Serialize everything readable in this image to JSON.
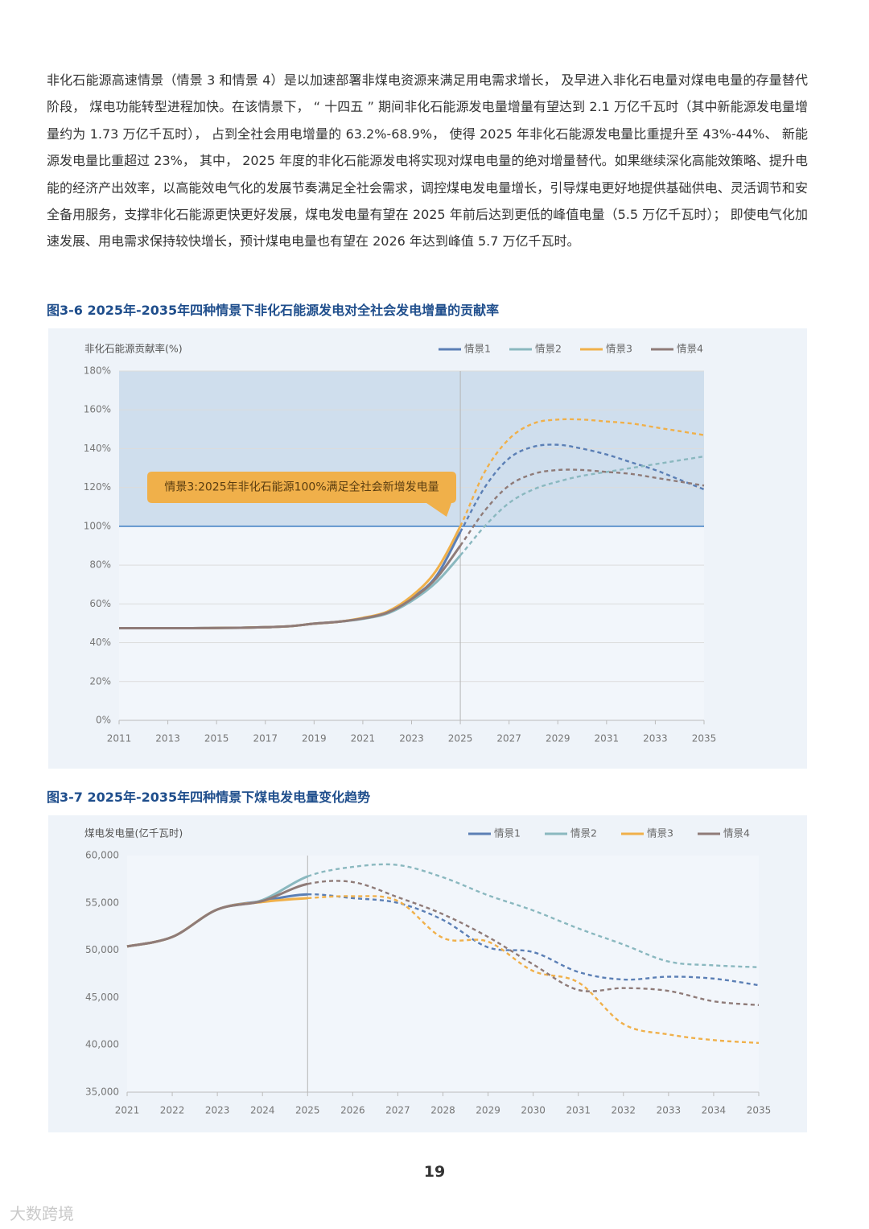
{
  "paragraph": "非化石能源高速情景（情景 3 和情景 4）是以加速部署非煤电资源来满足用电需求增长， 及早进入非化石电量对煤电电量的存量替代阶段， 煤电功能转型进程加快。在该情景下， “ 十四五 ” 期间非化石能源发电量增量有望达到 2.1 万亿千瓦时（其中新能源发电量增量约为 1.73 万亿千瓦时）， 占到全社会用电增量的 63.2%-68.9%， 使得 2025 年非化石能源发电量比重提升至 43%-44%、 新能源发电量比重超过 23%， 其中， 2025 年度的非化石能源发电将实现对煤电电量的绝对增量替代。如果继续深化高能效策略、提升电能的经济产出效率，以高能效电气化的发展节奏满足全社会需求，调控煤电发电量增长，引导煤电更好地提供基础供电、灵活调节和安全备用服务，支撑非化石能源更快更好发展，煤电发电量有望在 2025 年前后达到更低的峰值电量（5.5 万亿千瓦时）； 即使电气化加速发展、用电需求保持较快增长，预计煤电电量也有望在 2026 年达到峰值 5.7 万亿千瓦时。",
  "chart_data": [
    {
      "type": "line",
      "title": "图3-6 2025年-2035年四种情景下非化石能源发电对全社会发电增量的贡献率",
      "y_label": "非化石能源贡献率(%)",
      "x": [
        2011,
        2012,
        2013,
        2014,
        2015,
        2016,
        2017,
        2018,
        2019,
        2020,
        2021,
        2022,
        2023,
        2024,
        2025,
        2026,
        2027,
        2028,
        2029,
        2030,
        2031,
        2032,
        2033,
        2034,
        2035
      ],
      "xlim": [
        2011,
        2035
      ],
      "xticks": [
        2011,
        2013,
        2015,
        2017,
        2019,
        2021,
        2023,
        2025,
        2027,
        2029,
        2031,
        2033,
        2035
      ],
      "ylim": [
        0,
        180
      ],
      "yticks": [
        {
          "value": 0,
          "label": "0%"
        },
        {
          "value": 20,
          "label": "20%"
        },
        {
          "value": 40,
          "label": "40%"
        },
        {
          "value": 60,
          "label": "60%"
        },
        {
          "value": 80,
          "label": "80%"
        },
        {
          "value": 100,
          "label": "100%"
        },
        {
          "value": 120,
          "label": "120%"
        },
        {
          "value": 140,
          "label": "140%"
        },
        {
          "value": 160,
          "label": "160%"
        },
        {
          "value": 180,
          "label": "180%"
        }
      ],
      "grid": true,
      "divider_x": 2025,
      "ref_line": 100,
      "shade_above_ref_line": true,
      "annotation": "情景3:2025年非化石能源100%满足全社会新增发电量",
      "series": [
        {
          "name": "情景1",
          "color": "#5b7fb5",
          "values": [
            47.5,
            47.5,
            47.5,
            47.5,
            47.6,
            47.7,
            48,
            48.5,
            49.8,
            50.8,
            52.5,
            55.5,
            63,
            74,
            97,
            120,
            135,
            141,
            142,
            140,
            137,
            133,
            129,
            124,
            119
          ]
        },
        {
          "name": "情景2",
          "color": "#8ab8bf",
          "values": [
            47.5,
            47.5,
            47.5,
            47.5,
            47.6,
            47.7,
            48,
            48.5,
            49.8,
            50.8,
            52.3,
            55,
            61.5,
            71,
            85,
            100,
            112,
            119,
            123,
            126,
            128,
            130,
            132,
            134,
            136
          ]
        },
        {
          "name": "情景3",
          "color": "#f0b04a",
          "values": [
            47.5,
            47.5,
            47.5,
            47.5,
            47.6,
            47.7,
            48,
            48.5,
            49.8,
            50.8,
            52.8,
            56,
            64,
            77,
            100,
            128,
            145,
            153,
            155,
            155,
            154,
            153,
            151,
            149,
            147
          ]
        },
        {
          "name": "情景4",
          "color": "#8f7b78",
          "values": [
            47.5,
            47.5,
            47.5,
            47.5,
            47.6,
            47.7,
            48,
            48.5,
            49.8,
            50.8,
            52.5,
            55.5,
            62.5,
            73,
            90,
            108,
            121,
            127,
            129,
            129,
            128,
            127,
            125,
            123,
            121
          ]
        }
      ]
    },
    {
      "type": "line",
      "title": "图3-7 2025年-2035年四种情景下煤电发电量变化趋势",
      "y_label": "煤电发电量(亿千瓦时)",
      "x": [
        2021,
        2022,
        2023,
        2024,
        2025,
        2026,
        2027,
        2028,
        2029,
        2030,
        2031,
        2032,
        2033,
        2034,
        2035
      ],
      "xlim": [
        2021,
        2035
      ],
      "xticks": [
        2021,
        2022,
        2023,
        2024,
        2025,
        2026,
        2027,
        2028,
        2029,
        2030,
        2031,
        2032,
        2033,
        2034,
        2035
      ],
      "ylim": [
        35000,
        60000
      ],
      "yticks": [
        {
          "value": 35000,
          "label": "35,000"
        },
        {
          "value": 40000,
          "label": "40,000"
        },
        {
          "value": 45000,
          "label": "45,000"
        },
        {
          "value": 50000,
          "label": "50,000"
        },
        {
          "value": 55000,
          "label": "55,000"
        },
        {
          "value": 60000,
          "label": "60,000"
        }
      ],
      "grid": false,
      "divider_x": 2025,
      "series": [
        {
          "name": "情景1",
          "color": "#5b7fb5",
          "values": [
            50400,
            51400,
            54300,
            55200,
            55900,
            55500,
            55000,
            53200,
            50300,
            49800,
            47700,
            46900,
            47200,
            47000,
            46300
          ]
        },
        {
          "name": "情景2",
          "color": "#8ab8bf",
          "values": [
            50400,
            51400,
            54300,
            55300,
            57800,
            58800,
            59000,
            57700,
            55800,
            54200,
            52300,
            50600,
            48800,
            48400,
            48200
          ]
        },
        {
          "name": "情景3",
          "color": "#f0b04a",
          "values": [
            50400,
            51400,
            54300,
            55100,
            55500,
            55700,
            55200,
            51300,
            50900,
            47800,
            46600,
            42200,
            41100,
            40500,
            40200
          ]
        },
        {
          "name": "情景4",
          "color": "#8f7b78",
          "values": [
            50400,
            51400,
            54300,
            55200,
            57000,
            57200,
            55600,
            53800,
            51400,
            48500,
            45800,
            46000,
            45700,
            44600,
            44200
          ]
        }
      ]
    }
  ],
  "page_number": "19",
  "watermark": "大数跨境"
}
